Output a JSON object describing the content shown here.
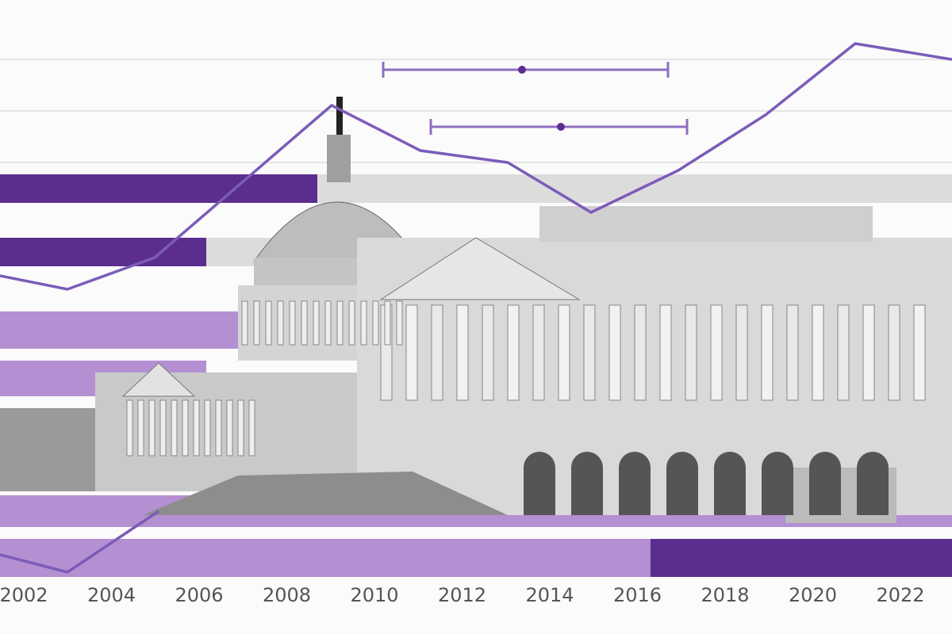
{
  "axis_labels": [
    "2002",
    "2004",
    "2006",
    "2008",
    "2010",
    "2012",
    "2014",
    "2016",
    "2018",
    "2020",
    "2022"
  ]
}
